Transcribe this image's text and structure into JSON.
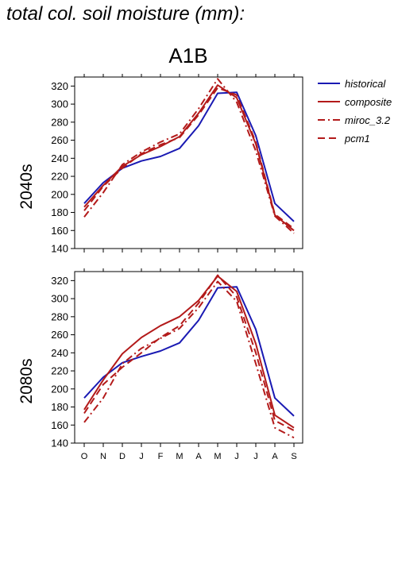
{
  "page_title": "total col. soil moisture (mm):",
  "chart_data": {
    "type": "line",
    "title": "A1B",
    "categories": [
      "O",
      "N",
      "D",
      "J",
      "F",
      "M",
      "A",
      "M",
      "J",
      "J",
      "A",
      "S"
    ],
    "ylim": [
      140,
      330
    ],
    "yticks": [
      140,
      160,
      180,
      200,
      220,
      240,
      260,
      280,
      300,
      320
    ],
    "grid": false,
    "legend": {
      "placement": "right",
      "entries": [
        {
          "name": "historical",
          "color": "#1a1ab3",
          "dash": "solid"
        },
        {
          "name": "composite",
          "color": "#b31a1a",
          "dash": "solid"
        },
        {
          "name": "miroc_3.2",
          "color": "#b31a1a",
          "dash": "dashdot"
        },
        {
          "name": "pcm1",
          "color": "#b31a1a",
          "dash": "dash"
        }
      ]
    },
    "panels": [
      {
        "label": "2040s",
        "series": [
          {
            "name": "historical",
            "values": [
              190,
              213,
              229,
              237,
              242,
              251,
              276,
              312,
              313,
              265,
              190,
              170
            ]
          },
          {
            "name": "composite",
            "values": [
              186,
              210,
              231,
              244,
              253,
              264,
              290,
              321,
              307,
              256,
              177,
              160
            ]
          },
          {
            "name": "miroc_3.2",
            "values": [
              175,
              202,
              233,
              247,
              258,
              267,
              295,
              328,
              302,
              248,
              176,
              157
            ]
          },
          {
            "name": "pcm1",
            "values": [
              182,
              209,
              229,
              245,
              255,
              263,
              288,
              318,
              310,
              258,
              178,
              162
            ]
          }
        ]
      },
      {
        "label": "2080s",
        "series": [
          {
            "name": "historical",
            "values": [
              190,
              213,
              229,
              236,
              242,
              251,
              276,
              312,
              313,
              266,
              190,
              170
            ]
          },
          {
            "name": "composite",
            "values": [
              177,
              210,
              239,
              257,
              270,
              280,
              298,
              325,
              308,
              250,
              171,
              157
            ]
          },
          {
            "name": "miroc_3.2",
            "values": [
              163,
              190,
              228,
              245,
              256,
              267,
              290,
              319,
              297,
              228,
              157,
              146
            ]
          },
          {
            "name": "pcm1",
            "values": [
              173,
              205,
              224,
              240,
              257,
              270,
              295,
              326,
              302,
              240,
              165,
              154
            ]
          }
        ]
      }
    ]
  }
}
